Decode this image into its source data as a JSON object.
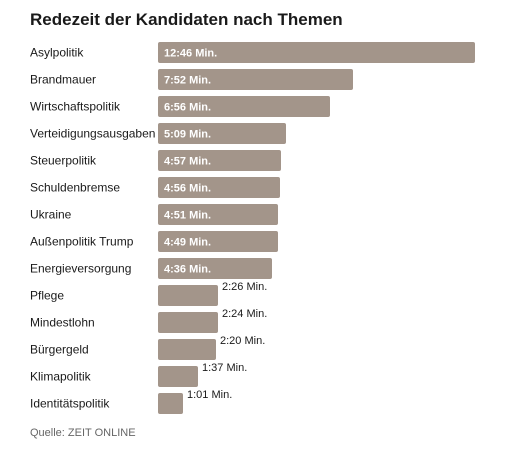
{
  "chart_data": {
    "type": "bar",
    "orientation": "horizontal",
    "title": "Redezeit der Kandidaten nach Themen",
    "source": "Quelle: ZEIT ONLINE",
    "unit": "seconds",
    "bar_color": "#a3958a",
    "categories": [
      "Asylpolitik",
      "Brandmauer",
      "Wirtschaftspolitik",
      "Verteidigungsausgaben",
      "Steuerpolitik",
      "Schuldenbremse",
      "Ukraine",
      "Außenpolitik Trump",
      "Energieversorgung",
      "Pflege",
      "Mindestlohn",
      "Bürgergeld",
      "Klimapolitik",
      "Identitätspolitik"
    ],
    "values": [
      766,
      472,
      416,
      309,
      297,
      296,
      291,
      289,
      276,
      146,
      144,
      140,
      97,
      61
    ],
    "labels": [
      "12:46 Min.",
      "7:52 Min.",
      "6:56 Min.",
      "5:09 Min.",
      "4:57 Min.",
      "4:56 Min.",
      "4:51 Min.",
      "4:49 Min.",
      "4:36 Min.",
      "2:26 Min.",
      "2:24 Min.",
      "2:20 Min.",
      "1:37 Min.",
      "1:01 Min."
    ]
  }
}
